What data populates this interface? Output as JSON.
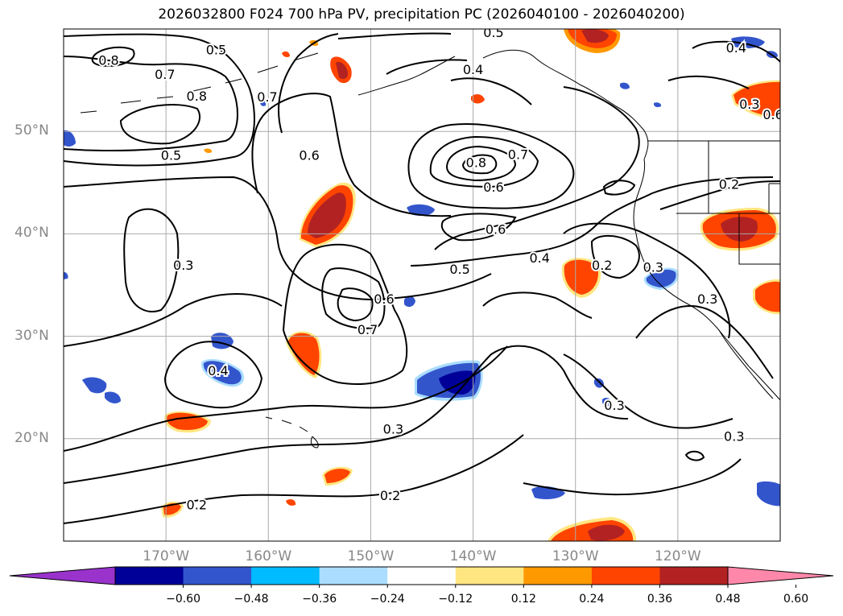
{
  "title": "2026032800 F024 700 hPa PV, precipitation PC (2026040100 - 2026040200)",
  "map": {
    "lon_range": [
      -180,
      -110
    ],
    "lat_range": [
      10,
      60
    ],
    "lat_labels": [
      {
        "lat": 50,
        "label": "50°N"
      },
      {
        "lat": 40,
        "label": "40°N"
      },
      {
        "lat": 30,
        "label": "30°N"
      },
      {
        "lat": 20,
        "label": "20°N"
      }
    ],
    "lon_labels": [
      {
        "lon": -170,
        "label": "170°W"
      },
      {
        "lon": -160,
        "label": "160°W"
      },
      {
        "lon": -150,
        "label": "150°W"
      },
      {
        "lon": -140,
        "label": "140°W"
      },
      {
        "lon": -130,
        "label": "130°W"
      },
      {
        "lon": -120,
        "label": "120°W"
      }
    ],
    "contour_labels": [
      {
        "text": "0.8",
        "lon": -175.6,
        "lat": 56.9
      },
      {
        "text": "0.5",
        "lon": -165.1,
        "lat": 57.9
      },
      {
        "text": "0.7",
        "lon": -170.1,
        "lat": 55.5
      },
      {
        "text": "0.8",
        "lon": -167.0,
        "lat": 53.4
      },
      {
        "text": "0.7",
        "lon": -160.1,
        "lat": 53.3
      },
      {
        "text": "0.5",
        "lon": -169.5,
        "lat": 47.6
      },
      {
        "text": "0.6",
        "lon": -156.0,
        "lat": 47.6
      },
      {
        "text": "0.5",
        "lon": -138.0,
        "lat": 59.6
      },
      {
        "text": "0.4",
        "lon": -140.0,
        "lat": 56.0
      },
      {
        "text": "0.4",
        "lon": -114.3,
        "lat": 58.1
      },
      {
        "text": "0.8",
        "lon": -139.7,
        "lat": 46.9
      },
      {
        "text": "0.7",
        "lon": -135.6,
        "lat": 47.7
      },
      {
        "text": "0.6",
        "lon": -138.0,
        "lat": 44.5
      },
      {
        "text": "0.6",
        "lon": -137.8,
        "lat": 40.4
      },
      {
        "text": "0.4",
        "lon": -133.5,
        "lat": 37.6
      },
      {
        "text": "0.5",
        "lon": -141.3,
        "lat": 36.5
      },
      {
        "text": "0.2",
        "lon": -127.4,
        "lat": 36.9
      },
      {
        "text": "0.3",
        "lon": -122.4,
        "lat": 36.7
      },
      {
        "text": "0.3",
        "lon": -117.1,
        "lat": 33.6
      },
      {
        "text": "0.2",
        "lon": -115.0,
        "lat": 44.8
      },
      {
        "text": "0.3",
        "lon": -113.0,
        "lat": 52.6
      },
      {
        "text": "0.6",
        "lon": -110.7,
        "lat": 51.6
      },
      {
        "text": "0.3",
        "lon": -168.3,
        "lat": 36.9
      },
      {
        "text": "0.6",
        "lon": -148.7,
        "lat": 33.6
      },
      {
        "text": "0.7",
        "lon": -150.3,
        "lat": 30.6
      },
      {
        "text": "0.4",
        "lon": -164.9,
        "lat": 26.6
      },
      {
        "text": "0.3",
        "lon": -126.2,
        "lat": 23.2
      },
      {
        "text": "0.3",
        "lon": -147.8,
        "lat": 20.9
      },
      {
        "text": "0.3",
        "lon": -114.5,
        "lat": 20.2
      },
      {
        "text": "0.2",
        "lon": -148.1,
        "lat": 14.4
      },
      {
        "text": "0.2",
        "lon": -167.0,
        "lat": 13.5
      }
    ]
  },
  "colorbar": {
    "ticks": [
      "−0.60",
      "−0.48",
      "−0.36",
      "−0.24",
      "−0.12",
      "0.12",
      "0.24",
      "0.36",
      "0.48",
      "0.60"
    ],
    "colors": [
      "#9933cc",
      "#000099",
      "#3355cc",
      "#00bbff",
      "#aaddff",
      "#ffffff",
      "#ffe680",
      "#ff9900",
      "#ff4400",
      "#b22222",
      "#ff88aa"
    ]
  },
  "colors": {
    "contour": "#000000",
    "grid": "#aaaaaa",
    "coast": "#000000",
    "label_gray": "#888888"
  }
}
